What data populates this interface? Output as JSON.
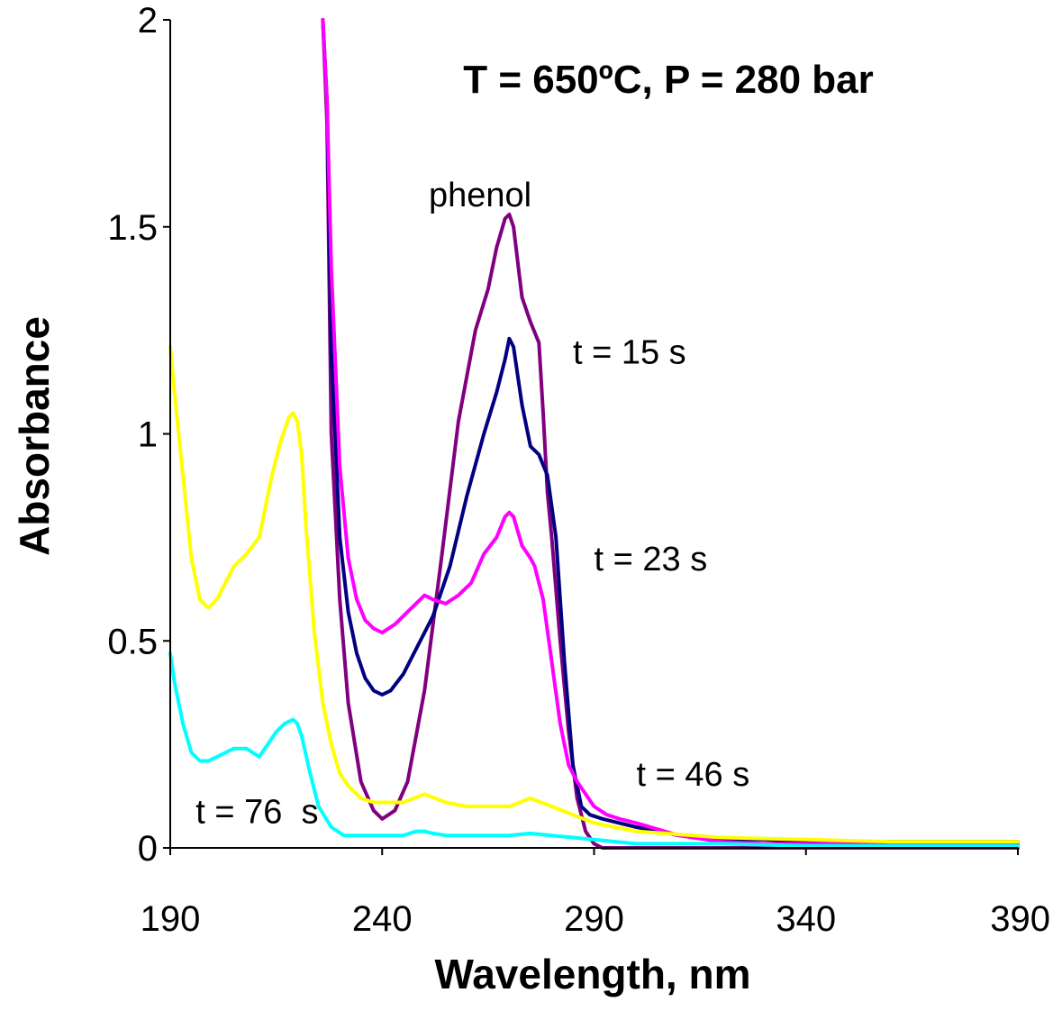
{
  "chart_data": {
    "type": "line",
    "title": "T = 650ºC,  P = 280 bar",
    "xlabel": "Wavelength, nm",
    "ylabel": "Absorbance",
    "xlim": [
      190,
      390
    ],
    "ylim": [
      0,
      2
    ],
    "xticks": [
      190,
      240,
      290,
      340,
      390
    ],
    "yticks": [
      0,
      0.5,
      1,
      1.5,
      2
    ],
    "ytick_labels": [
      "0",
      "0.5",
      "1",
      "1.5",
      "2"
    ],
    "grid": false,
    "legend": "none",
    "annotations": [
      {
        "text": "phenol",
        "x": 251,
        "y": 1.55
      },
      {
        "text": "t = 15 s",
        "x": 285,
        "y": 1.17
      },
      {
        "text": "t = 23 s",
        "x": 290,
        "y": 0.67
      },
      {
        "text": "t = 46 s",
        "x": 300,
        "y": 0.15
      },
      {
        "text": "t = 76  s",
        "x": 196,
        "y": 0.06
      }
    ],
    "series": [
      {
        "color": "#800080",
        "x": [
          226,
          227,
          228,
          230,
          232,
          235,
          238,
          240,
          243,
          246,
          250,
          254,
          258,
          262,
          265,
          267,
          269,
          270,
          271,
          273,
          275,
          277,
          278,
          279,
          280,
          282,
          284,
          286,
          288,
          290,
          292,
          295,
          300,
          310,
          320,
          330,
          340,
          360,
          380,
          390
        ],
        "y": [
          2.0,
          1.75,
          1.0,
          0.6,
          0.35,
          0.16,
          0.09,
          0.07,
          0.09,
          0.16,
          0.38,
          0.7,
          1.03,
          1.25,
          1.35,
          1.45,
          1.52,
          1.53,
          1.5,
          1.33,
          1.27,
          1.22,
          1.05,
          0.86,
          0.75,
          0.5,
          0.28,
          0.12,
          0.04,
          0.01,
          0.0,
          0.0,
          0.0,
          0.0,
          0.0,
          0.0,
          0.0,
          0.0,
          0.0,
          0.0
        ]
      },
      {
        "color": "#000080",
        "x": [
          226,
          227,
          228,
          230,
          232,
          234,
          236,
          238,
          240,
          242,
          245,
          248,
          252,
          256,
          260,
          264,
          267,
          269,
          270,
          271,
          273,
          275,
          277,
          279,
          281,
          283,
          285,
          287,
          289,
          292,
          296,
          300,
          310,
          320,
          330,
          340,
          360,
          380,
          390
        ],
        "y": [
          2.0,
          1.8,
          1.2,
          0.75,
          0.57,
          0.47,
          0.41,
          0.38,
          0.37,
          0.38,
          0.42,
          0.48,
          0.56,
          0.68,
          0.85,
          1.0,
          1.1,
          1.18,
          1.23,
          1.21,
          1.07,
          0.97,
          0.95,
          0.9,
          0.75,
          0.45,
          0.2,
          0.1,
          0.08,
          0.07,
          0.06,
          0.05,
          0.03,
          0.02,
          0.02,
          0.015,
          0.015,
          0.015,
          0.015
        ]
      },
      {
        "color": "#ff00ff",
        "x": [
          226,
          227,
          228,
          230,
          232,
          234,
          236,
          238,
          240,
          243,
          246,
          249,
          250,
          252,
          255,
          258,
          261,
          264,
          267,
          269,
          270,
          271,
          273,
          275,
          276,
          278,
          280,
          282,
          284,
          286,
          288,
          290,
          293,
          296,
          300,
          310,
          320,
          330,
          340,
          360,
          380,
          390
        ],
        "y": [
          2.0,
          1.8,
          1.4,
          0.92,
          0.7,
          0.6,
          0.55,
          0.53,
          0.52,
          0.54,
          0.57,
          0.6,
          0.61,
          0.6,
          0.59,
          0.61,
          0.64,
          0.71,
          0.75,
          0.8,
          0.81,
          0.8,
          0.73,
          0.7,
          0.68,
          0.6,
          0.45,
          0.3,
          0.2,
          0.16,
          0.13,
          0.1,
          0.08,
          0.07,
          0.06,
          0.03,
          0.015,
          0.01,
          0.01,
          0.01,
          0.01,
          0.01
        ]
      },
      {
        "color": "#ffff00",
        "x": [
          190,
          191,
          193,
          195,
          197,
          199,
          201,
          203,
          205,
          208,
          211,
          214,
          216,
          218,
          219,
          220,
          221,
          222,
          224,
          226,
          228,
          230,
          232,
          235,
          238,
          240,
          245,
          250,
          255,
          260,
          265,
          270,
          275,
          280,
          285,
          290,
          300,
          320,
          340,
          360,
          390
        ],
        "y": [
          1.21,
          1.1,
          0.9,
          0.7,
          0.6,
          0.58,
          0.6,
          0.64,
          0.68,
          0.71,
          0.75,
          0.9,
          0.98,
          1.04,
          1.05,
          1.03,
          0.95,
          0.78,
          0.52,
          0.35,
          0.25,
          0.18,
          0.15,
          0.12,
          0.11,
          0.11,
          0.11,
          0.13,
          0.11,
          0.1,
          0.1,
          0.1,
          0.12,
          0.1,
          0.08,
          0.06,
          0.04,
          0.025,
          0.02,
          0.015,
          0.015
        ]
      },
      {
        "color": "#00ffff",
        "x": [
          190,
          191,
          193,
          195,
          197,
          199,
          201,
          203,
          205,
          208,
          211,
          213,
          215,
          217,
          219,
          220,
          221,
          223,
          225,
          228,
          231,
          235,
          240,
          245,
          248,
          250,
          252,
          255,
          260,
          265,
          270,
          275,
          280,
          285,
          290,
          295,
          300,
          320,
          340,
          390
        ],
        "y": [
          0.47,
          0.4,
          0.3,
          0.23,
          0.21,
          0.21,
          0.22,
          0.23,
          0.24,
          0.24,
          0.22,
          0.25,
          0.28,
          0.3,
          0.31,
          0.3,
          0.27,
          0.18,
          0.1,
          0.05,
          0.03,
          0.03,
          0.03,
          0.03,
          0.04,
          0.04,
          0.035,
          0.03,
          0.03,
          0.03,
          0.03,
          0.035,
          0.03,
          0.025,
          0.02,
          0.015,
          0.01,
          0.01,
          0.005,
          0.005
        ]
      }
    ]
  }
}
